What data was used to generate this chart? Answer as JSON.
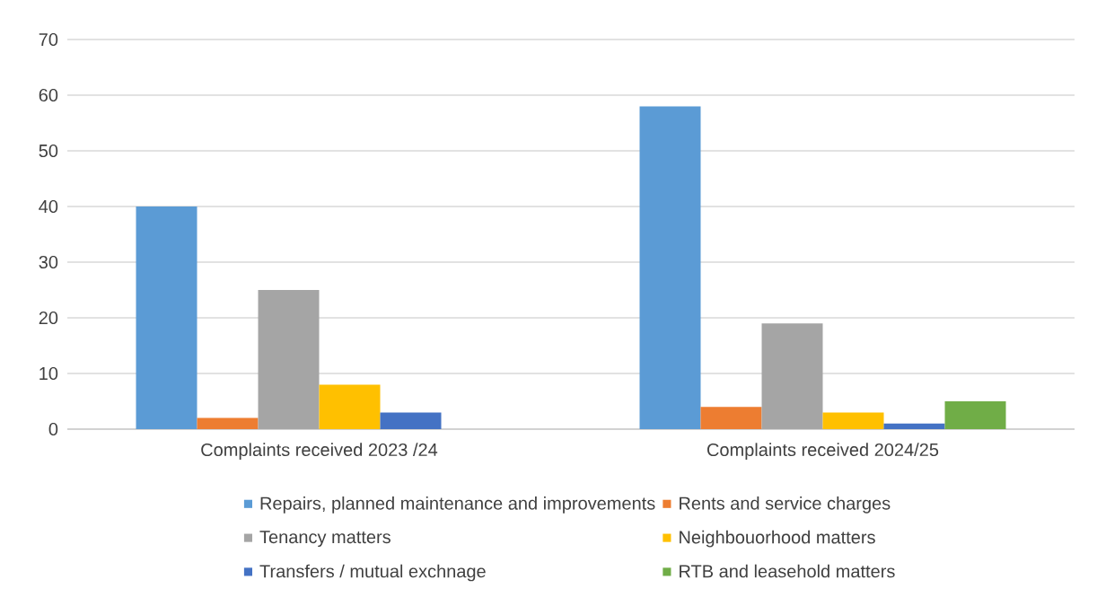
{
  "chart_data": {
    "type": "bar",
    "categories": [
      "Complaints received 2023 /24",
      "Complaints received 2024/25"
    ],
    "series": [
      {
        "name": "Repairs, planned maintenance and improvements",
        "color": "#5b9bd5",
        "values": [
          40,
          58
        ]
      },
      {
        "name": "Rents and service charges",
        "color": "#ed7d31",
        "values": [
          2,
          4
        ]
      },
      {
        "name": "Tenancy matters",
        "color": "#a5a5a5",
        "values": [
          25,
          19
        ]
      },
      {
        "name": "Neighbouorhood matters",
        "color": "#ffc000",
        "values": [
          8,
          3
        ]
      },
      {
        "name": "Transfers / mutual exchnage",
        "color": "#4472c4",
        "values": [
          3,
          1
        ]
      },
      {
        "name": "RTB and leasehold matters",
        "color": "#70ad47",
        "values": [
          0,
          5
        ]
      }
    ],
    "ylim": [
      0,
      70
    ],
    "yticks": [
      0,
      10,
      20,
      30,
      40,
      50,
      60,
      70
    ],
    "grid": "y",
    "legend": "bottom"
  }
}
